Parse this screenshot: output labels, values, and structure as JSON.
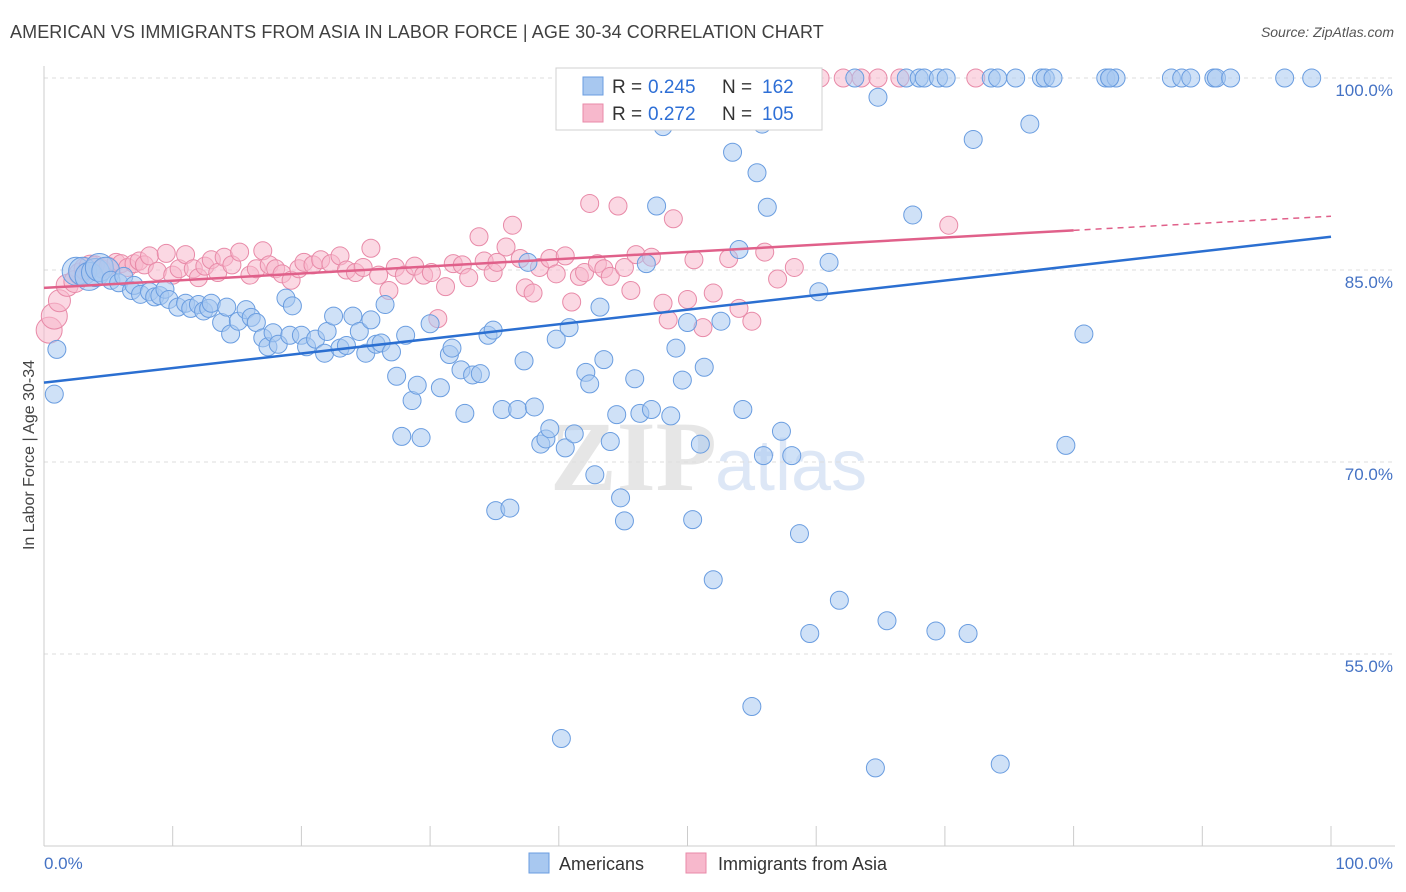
{
  "title": "AMERICAN VS IMMIGRANTS FROM ASIA IN LABOR FORCE | AGE 30-34 CORRELATION CHART",
  "source": "Source: ZipAtlas.com",
  "watermark": {
    "zip": "ZIP",
    "atlas": "atlas"
  },
  "colors": {
    "americans_fill": "#a8c8f0",
    "americans_stroke": "#6a9de0",
    "americans_line": "#2b6fd1",
    "asia_fill": "#f7b8cc",
    "asia_stroke": "#e88aa8",
    "asia_line": "#e0608a",
    "grid": "#dddddd",
    "tick_text": "#4472c4"
  },
  "legend": {
    "row1": {
      "r_label": "R =",
      "r_value": "0.245",
      "n_label": "N =",
      "n_value": "162"
    },
    "row2": {
      "r_label": "R =",
      "r_value": "0.272",
      "n_label": "N =",
      "n_value": "105"
    }
  },
  "bottom_legend": {
    "americans": "Americans",
    "asia": "Immigrants from Asia"
  },
  "chart_data": {
    "type": "scatter",
    "title": "AMERICAN VS IMMIGRANTS FROM ASIA IN LABOR FORCE | AGE 30-34 CORRELATION CHART",
    "xlabel": "",
    "ylabel": "In Labor Force | Age 30-34",
    "xlim": [
      0,
      100
    ],
    "ylim": [
      39,
      103
    ],
    "x_tick_labels": [
      "0.0%",
      "100.0%"
    ],
    "y_ticks": [
      55,
      70,
      85,
      100
    ],
    "y_tick_labels": [
      "55.0%",
      "70.0%",
      "85.0%",
      "100.0%"
    ],
    "grid": true,
    "legend_position": "top-center",
    "series": [
      {
        "name": "Americans",
        "r": 0.245,
        "n": 162,
        "trend": {
          "x": [
            0,
            100
          ],
          "y": [
            76.2,
            87.6
          ]
        },
        "points": [
          [
            0.8,
            75.3
          ],
          [
            1.0,
            78.8
          ],
          [
            2.5,
            84.9
          ],
          [
            3.0,
            84.9
          ],
          [
            3.5,
            84.5
          ],
          [
            4.0,
            84.8
          ],
          [
            4.3,
            85.2
          ],
          [
            4.8,
            84.9
          ],
          [
            5.2,
            84.2
          ],
          [
            5.8,
            84.0
          ],
          [
            6.2,
            84.5
          ],
          [
            6.8,
            83.4
          ],
          [
            7.0,
            83.8
          ],
          [
            7.5,
            83.1
          ],
          [
            8.2,
            83.3
          ],
          [
            8.6,
            82.9
          ],
          [
            9.0,
            83.0
          ],
          [
            9.4,
            83.5
          ],
          [
            9.7,
            82.7
          ],
          [
            10.4,
            82.1
          ],
          [
            11.0,
            82.4
          ],
          [
            11.4,
            82.0
          ],
          [
            12.0,
            82.3
          ],
          [
            12.4,
            81.8
          ],
          [
            12.8,
            82.0
          ],
          [
            13.0,
            82.4
          ],
          [
            13.8,
            80.9
          ],
          [
            14.2,
            82.1
          ],
          [
            14.5,
            80.0
          ],
          [
            15.1,
            81.0
          ],
          [
            15.7,
            81.9
          ],
          [
            16.1,
            81.3
          ],
          [
            16.5,
            80.9
          ],
          [
            17.0,
            79.7
          ],
          [
            17.4,
            79.0
          ],
          [
            17.8,
            80.1
          ],
          [
            18.2,
            79.2
          ],
          [
            18.8,
            82.8
          ],
          [
            19.1,
            79.9
          ],
          [
            19.3,
            82.2
          ],
          [
            20.0,
            79.9
          ],
          [
            20.4,
            79.0
          ],
          [
            21.1,
            79.6
          ],
          [
            21.8,
            78.5
          ],
          [
            22.0,
            80.2
          ],
          [
            22.5,
            81.4
          ],
          [
            23.0,
            78.9
          ],
          [
            23.5,
            79.1
          ],
          [
            24.0,
            81.4
          ],
          [
            24.5,
            80.2
          ],
          [
            25.0,
            78.5
          ],
          [
            25.4,
            81.1
          ],
          [
            25.8,
            79.2
          ],
          [
            26.2,
            79.3
          ],
          [
            26.5,
            82.3
          ],
          [
            27.0,
            78.6
          ],
          [
            27.4,
            76.7
          ],
          [
            27.8,
            72.0
          ],
          [
            28.1,
            79.9
          ],
          [
            28.6,
            74.8
          ],
          [
            29.0,
            76.0
          ],
          [
            29.3,
            71.9
          ],
          [
            30.0,
            80.8
          ],
          [
            30.8,
            75.8
          ],
          [
            31.5,
            78.4
          ],
          [
            31.7,
            78.9
          ],
          [
            32.4,
            77.2
          ],
          [
            32.7,
            73.8
          ],
          [
            33.3,
            76.8
          ],
          [
            33.9,
            76.9
          ],
          [
            34.5,
            79.9
          ],
          [
            34.9,
            80.3
          ],
          [
            35.1,
            66.2
          ],
          [
            35.6,
            74.1
          ],
          [
            36.2,
            66.4
          ],
          [
            36.8,
            74.1
          ],
          [
            37.3,
            77.9
          ],
          [
            37.6,
            85.6
          ],
          [
            38.1,
            74.3
          ],
          [
            38.6,
            71.4
          ],
          [
            39.0,
            71.8
          ],
          [
            39.3,
            72.6
          ],
          [
            39.8,
            79.6
          ],
          [
            40.2,
            48.4
          ],
          [
            40.5,
            71.1
          ],
          [
            40.8,
            80.5
          ],
          [
            41.2,
            72.2
          ],
          [
            42.1,
            77.0
          ],
          [
            42.4,
            76.1
          ],
          [
            42.8,
            69.0
          ],
          [
            43.2,
            82.1
          ],
          [
            43.5,
            78.0
          ],
          [
            44.0,
            71.6
          ],
          [
            44.5,
            73.7
          ],
          [
            44.8,
            67.2
          ],
          [
            45.1,
            65.4
          ],
          [
            45.9,
            76.5
          ],
          [
            46.3,
            73.8
          ],
          [
            46.8,
            85.5
          ],
          [
            47.2,
            74.1
          ],
          [
            47.6,
            90.0
          ],
          [
            48.1,
            96.2
          ],
          [
            48.7,
            73.6
          ],
          [
            49.1,
            78.9
          ],
          [
            49.6,
            76.4
          ],
          [
            50.0,
            80.9
          ],
          [
            50.4,
            65.5
          ],
          [
            50.8,
            99.8
          ],
          [
            51.0,
            71.4
          ],
          [
            51.3,
            77.4
          ],
          [
            52.0,
            60.8
          ],
          [
            52.6,
            81.0
          ],
          [
            53.5,
            94.2
          ],
          [
            54.0,
            86.6
          ],
          [
            54.3,
            74.1
          ],
          [
            55.0,
            50.9
          ],
          [
            55.4,
            92.6
          ],
          [
            55.8,
            96.4
          ],
          [
            55.9,
            70.5
          ],
          [
            56.2,
            89.9
          ],
          [
            57.3,
            72.4
          ],
          [
            58.1,
            70.5
          ],
          [
            58.7,
            64.4
          ],
          [
            59.5,
            56.6
          ],
          [
            60.2,
            83.3
          ],
          [
            61.0,
            85.6
          ],
          [
            61.8,
            59.2
          ],
          [
            63.0,
            100
          ],
          [
            64.6,
            46.1
          ],
          [
            64.8,
            98.5
          ],
          [
            65.5,
            57.6
          ],
          [
            67.0,
            100
          ],
          [
            67.5,
            89.3
          ],
          [
            68.0,
            100
          ],
          [
            68.4,
            100
          ],
          [
            69.3,
            56.8
          ],
          [
            69.5,
            100
          ],
          [
            70.1,
            100
          ],
          [
            71.8,
            56.6
          ],
          [
            72.2,
            95.2
          ],
          [
            73.6,
            100
          ],
          [
            74.1,
            100
          ],
          [
            74.3,
            46.4
          ],
          [
            75.5,
            100
          ],
          [
            76.6,
            96.4
          ],
          [
            77.5,
            100
          ],
          [
            77.8,
            100
          ],
          [
            78.4,
            100
          ],
          [
            79.4,
            71.3
          ],
          [
            80.8,
            80.0
          ],
          [
            82.5,
            100
          ],
          [
            82.8,
            100
          ],
          [
            83.3,
            100
          ],
          [
            87.6,
            100
          ],
          [
            88.4,
            100
          ],
          [
            89.1,
            100
          ],
          [
            90.9,
            100
          ],
          [
            91.1,
            100
          ],
          [
            92.2,
            100
          ],
          [
            96.4,
            100
          ],
          [
            98.5,
            100
          ],
          [
            82.8,
            100
          ]
        ]
      },
      {
        "name": "Immigrants from Asia",
        "r": 0.272,
        "n": 105,
        "trend": {
          "x": [
            0,
            80
          ],
          "y": [
            83.6,
            88.1
          ]
        },
        "trend_dashed": {
          "x": [
            80,
            100
          ],
          "y": [
            88.1,
            89.2
          ]
        },
        "points": [
          [
            0.4,
            80.3
          ],
          [
            0.8,
            81.4
          ],
          [
            1.2,
            82.6
          ],
          [
            1.8,
            83.8
          ],
          [
            2.4,
            84.1
          ],
          [
            2.8,
            84.7
          ],
          [
            3.2,
            85.1
          ],
          [
            3.6,
            85.3
          ],
          [
            4.0,
            85.4
          ],
          [
            4.5,
            85.1
          ],
          [
            5.0,
            85.3
          ],
          [
            5.6,
            85.6
          ],
          [
            6.0,
            85.5
          ],
          [
            6.5,
            85.2
          ],
          [
            7.0,
            85.5
          ],
          [
            7.4,
            85.7
          ],
          [
            7.8,
            85.4
          ],
          [
            8.2,
            86.1
          ],
          [
            8.8,
            84.9
          ],
          [
            9.5,
            86.3
          ],
          [
            10.0,
            84.6
          ],
          [
            10.5,
            85.1
          ],
          [
            11.0,
            86.2
          ],
          [
            11.6,
            85.1
          ],
          [
            12.0,
            84.4
          ],
          [
            12.5,
            85.3
          ],
          [
            13.0,
            85.8
          ],
          [
            13.5,
            84.8
          ],
          [
            14.0,
            86.0
          ],
          [
            14.6,
            85.4
          ],
          [
            15.2,
            86.4
          ],
          [
            16.0,
            84.6
          ],
          [
            16.5,
            85.1
          ],
          [
            17.0,
            86.5
          ],
          [
            17.5,
            85.4
          ],
          [
            18.0,
            85.1
          ],
          [
            18.5,
            84.7
          ],
          [
            19.2,
            84.2
          ],
          [
            19.8,
            85.1
          ],
          [
            20.2,
            85.6
          ],
          [
            20.9,
            85.4
          ],
          [
            21.5,
            85.8
          ],
          [
            22.3,
            85.5
          ],
          [
            23.0,
            86.1
          ],
          [
            23.5,
            85.0
          ],
          [
            24.2,
            84.8
          ],
          [
            24.8,
            85.2
          ],
          [
            25.4,
            86.7
          ],
          [
            26.0,
            84.6
          ],
          [
            26.8,
            83.4
          ],
          [
            27.3,
            85.2
          ],
          [
            28.0,
            84.6
          ],
          [
            28.8,
            85.3
          ],
          [
            29.5,
            84.6
          ],
          [
            30.1,
            84.8
          ],
          [
            30.6,
            81.2
          ],
          [
            31.2,
            83.7
          ],
          [
            31.8,
            85.5
          ],
          [
            32.5,
            85.4
          ],
          [
            33.0,
            84.4
          ],
          [
            33.8,
            87.6
          ],
          [
            34.2,
            85.7
          ],
          [
            34.9,
            84.8
          ],
          [
            35.2,
            85.6
          ],
          [
            35.9,
            86.8
          ],
          [
            36.4,
            88.5
          ],
          [
            37.0,
            85.9
          ],
          [
            37.4,
            83.6
          ],
          [
            38.0,
            83.2
          ],
          [
            38.5,
            85.2
          ],
          [
            39.3,
            85.9
          ],
          [
            39.8,
            84.7
          ],
          [
            40.5,
            86.1
          ],
          [
            41.0,
            82.5
          ],
          [
            41.6,
            84.5
          ],
          [
            42.0,
            84.8
          ],
          [
            42.4,
            90.2
          ],
          [
            43.0,
            85.5
          ],
          [
            43.5,
            85.1
          ],
          [
            44.0,
            84.5
          ],
          [
            44.6,
            90.0
          ],
          [
            45.1,
            85.2
          ],
          [
            45.6,
            83.4
          ],
          [
            46.0,
            86.2
          ],
          [
            47.2,
            86.0
          ],
          [
            48.1,
            82.4
          ],
          [
            48.5,
            81.1
          ],
          [
            48.9,
            89.0
          ],
          [
            50.0,
            82.7
          ],
          [
            50.5,
            85.8
          ],
          [
            51.2,
            80.5
          ],
          [
            52.0,
            83.2
          ],
          [
            53.2,
            85.9
          ],
          [
            54.0,
            82.0
          ],
          [
            55.0,
            81.0
          ],
          [
            56.0,
            86.4
          ],
          [
            57.0,
            84.3
          ],
          [
            58.3,
            85.2
          ],
          [
            60.3,
            100
          ],
          [
            62.1,
            100
          ],
          [
            63.5,
            100
          ],
          [
            64.8,
            100
          ],
          [
            66.5,
            100
          ],
          [
            70.3,
            88.5
          ],
          [
            72.4,
            100
          ]
        ]
      }
    ]
  }
}
